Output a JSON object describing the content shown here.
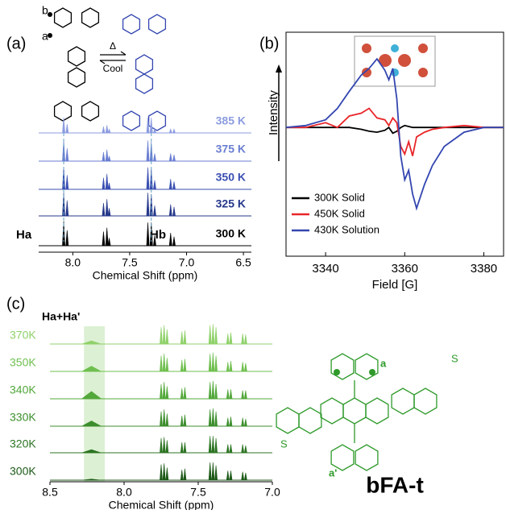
{
  "chart_data": [
    {
      "type": "spectrum",
      "panel": "(a)",
      "xlabel": "Chemical Shift (ppm)",
      "annotations": [
        "Ha",
        "Hb"
      ],
      "xlim": [
        8.3,
        6.43
      ],
      "xticks": [
        {
          "value": 8,
          "label": "8.0"
        },
        7.5,
        {
          "value": 7,
          "label": "7.0"
        },
        6.5
      ],
      "x": [
        8.08,
        8.05,
        7.73,
        7.7,
        7.68,
        7.34,
        7.31,
        7.28,
        7.14,
        7.11
      ],
      "series": [
        {
          "name": "385 K",
          "color": "#8c9ce0",
          "values": [
            0.6,
            0.35,
            0.25,
            0.3,
            0.15,
            0.6,
            0.6,
            0.2,
            0.15,
            0.15
          ]
        },
        {
          "name": "375 K",
          "color": "#6a7ed2",
          "values": [
            0.8,
            0.5,
            0.35,
            0.45,
            0.2,
            0.8,
            0.75,
            0.3,
            0.3,
            0.25
          ]
        },
        {
          "name": "350 K",
          "color": "#3a4fb2",
          "values": [
            0.85,
            0.55,
            0.45,
            0.6,
            0.25,
            0.85,
            0.8,
            0.35,
            0.4,
            0.3
          ]
        },
        {
          "name": "325 K",
          "color": "#26388a",
          "values": [
            0.9,
            0.6,
            0.5,
            0.65,
            0.3,
            0.9,
            0.85,
            0.4,
            0.45,
            0.35
          ]
        },
        {
          "name": "300 K",
          "color": "#000000",
          "values": [
            0.95,
            0.6,
            0.55,
            0.7,
            0.3,
            0.9,
            0.9,
            0.4,
            0.5,
            0.35
          ]
        }
      ]
    },
    {
      "type": "line",
      "panel": "(b)",
      "xlabel": "Field [G]",
      "ylabel": "Intensity",
      "legend": "bottom-left",
      "xlim": [
        3330,
        3385
      ],
      "ylim": [
        -1.2,
        1
      ],
      "xticks": [
        3340,
        3360,
        3380
      ],
      "x": [
        3330,
        3335,
        3340,
        3343,
        3346,
        3349,
        3351,
        3353,
        3355,
        3356,
        3357,
        3358,
        3359,
        3360,
        3361,
        3362,
        3363,
        3365,
        3367,
        3370,
        3375,
        3380,
        3385
      ],
      "series": [
        {
          "name": "300K Solid",
          "color": "#000000",
          "values": [
            0,
            0,
            0,
            0,
            0,
            -0.02,
            -0.04,
            -0.05,
            -0.03,
            0,
            -0.06,
            -0.04,
            0,
            0.02,
            0.01,
            0,
            0,
            0,
            0,
            0,
            0,
            0,
            0
          ]
        },
        {
          "name": "450K Solid",
          "color": "#e8262a",
          "values": [
            0,
            0,
            0.05,
            0,
            0.12,
            0.15,
            0.2,
            0.1,
            0.08,
            0.02,
            0.1,
            0.05,
            -0.2,
            -0.28,
            -0.15,
            -0.3,
            -0.1,
            -0.05,
            -0.02,
            0,
            0.02,
            0,
            0
          ]
        },
        {
          "name": "430K Solution",
          "color": "#3346b0",
          "values": [
            0,
            0.02,
            0.08,
            0.2,
            0.38,
            0.55,
            0.62,
            0.72,
            0.6,
            0.5,
            0.62,
            0.3,
            -0.3,
            -0.55,
            -0.45,
            -0.7,
            -0.85,
            -0.6,
            -0.4,
            -0.2,
            -0.05,
            0,
            0
          ]
        }
      ]
    },
    {
      "type": "spectrum",
      "panel": "(c)",
      "xlabel": "Chemical Shift (ppm)",
      "annotations": [
        "Ha+Ha'"
      ],
      "xlim": [
        8.5,
        7.0
      ],
      "xticks": [
        8.5,
        {
          "value": 8,
          "label": "8.0"
        },
        7.5,
        {
          "value": 7,
          "label": "7.0"
        }
      ],
      "x": [
        8.22,
        7.75,
        7.73,
        7.71,
        7.61,
        7.59,
        7.42,
        7.4,
        7.38,
        7.3,
        7.28,
        7.2,
        7.18
      ],
      "series": [
        {
          "name": "370K",
          "color": "#8fd16a",
          "values": [
            0.15,
            0.8,
            0.9,
            0.7,
            0.6,
            0.65,
            0.9,
            0.95,
            0.8,
            0.5,
            0.55,
            0.5,
            0.45
          ]
        },
        {
          "name": "350K",
          "color": "#6fbf4f",
          "values": [
            0.25,
            0.75,
            0.85,
            0.65,
            0.55,
            0.6,
            0.85,
            0.9,
            0.75,
            0.45,
            0.5,
            0.45,
            0.4
          ]
        },
        {
          "name": "340K",
          "color": "#52a83a",
          "values": [
            0.35,
            0.7,
            0.8,
            0.6,
            0.5,
            0.55,
            0.8,
            0.85,
            0.7,
            0.45,
            0.45,
            0.4,
            0.4
          ]
        },
        {
          "name": "330K",
          "color": "#3c8e2c",
          "values": [
            0.25,
            0.7,
            0.8,
            0.6,
            0.5,
            0.55,
            0.8,
            0.85,
            0.7,
            0.4,
            0.45,
            0.4,
            0.35
          ]
        },
        {
          "name": "320K",
          "color": "#2c7423",
          "values": [
            0.15,
            0.7,
            0.75,
            0.6,
            0.5,
            0.5,
            0.8,
            0.8,
            0.7,
            0.4,
            0.4,
            0.4,
            0.35
          ]
        },
        {
          "name": "300K",
          "color": "#1d5a18",
          "values": [
            0.05,
            0.75,
            0.8,
            0.6,
            0.5,
            0.55,
            0.85,
            0.85,
            0.7,
            0.45,
            0.45,
            0.4,
            0.35
          ]
        }
      ]
    }
  ],
  "diagrams": {
    "scheme_labels": [
      "b",
      "a",
      "Δ",
      "Cool"
    ],
    "molecule_labels": [
      "a'",
      "a",
      "S",
      "S"
    ],
    "molecule_name": "bFA-t"
  }
}
